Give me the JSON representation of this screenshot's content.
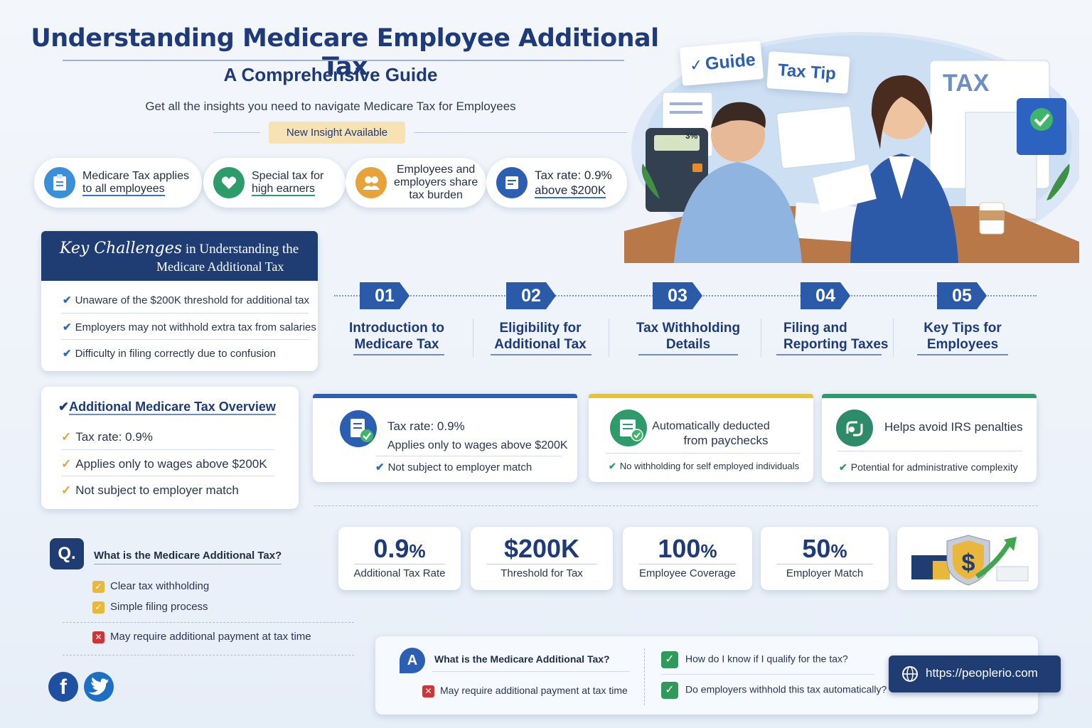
{
  "header": {
    "title": "Understanding Medicare Employee Additional Tax",
    "subtitle": "A Comprehensive Guide",
    "tagline": "Get all the insights you need to navigate Medicare Tax for Employees",
    "badge": "New Insight Available"
  },
  "illustration": {
    "guide_note": "Guide",
    "tip_note": "Tax Tip",
    "tax_doc": "TAX",
    "calculator_display": "3%"
  },
  "pills": [
    {
      "line1": "Medicare Tax applies",
      "line2": "to all employees",
      "icon": "clipboard-icon",
      "color": "#3a8fd9"
    },
    {
      "line1": "Special tax for",
      "line2": "high earners",
      "icon": "heart-hand-icon",
      "color": "#2e9b6a"
    },
    {
      "line1": "Employees and",
      "line2": "employers share",
      "line3": "tax burden",
      "icon": "people-icon",
      "color": "#e8a23a"
    },
    {
      "line1": "Tax rate: 0.9%",
      "line2": "above $200K",
      "icon": "document-icon",
      "color": "#2c5fb3"
    }
  ],
  "key_challenges": {
    "title_bold": "Key Challenges",
    "title_rest": " in Understanding the",
    "title_line2": "Medicare Additional Tax",
    "items": [
      "Unaware of the $200K threshold for additional tax",
      "Employers may not withhold extra tax from salaries",
      "Difficulty in filing correctly due to confusion"
    ]
  },
  "steps": [
    {
      "num": "01",
      "line1": "Introduction to",
      "line2": "Medicare Tax"
    },
    {
      "num": "02",
      "line1": "Eligibility for",
      "line2": "Additional Tax"
    },
    {
      "num": "03",
      "line1": "Tax Withholding",
      "line2": "Details"
    },
    {
      "num": "04",
      "line1": "Filing and",
      "line2": "Reporting Taxes"
    },
    {
      "num": "05",
      "line1": "Key Tips for",
      "line2": "Employees"
    }
  ],
  "overview": {
    "title": "Additional Medicare Tax Overview",
    "items": [
      "Tax rate:  0.9%",
      "Applies only to wages above $200K",
      "Not subject to employer match"
    ]
  },
  "features": [
    {
      "line1": "Tax rate: 0.9%",
      "line2": "Applies only to wages above $200K",
      "bottom": "Not subject to employer match",
      "color": "#2c5fb3"
    },
    {
      "line1": "Automatically deducted",
      "line2": "from paychecks",
      "bottom": "No withholding for self employed individuals",
      "color": "#e8c23a"
    },
    {
      "line1": "Helps avoid IRS penalties",
      "bottom": "Potential for administrative complexity",
      "color": "#2e9b6a"
    }
  ],
  "stats": [
    {
      "value": "0.9",
      "unit": "%",
      "label": "Additional Tax Rate"
    },
    {
      "value": "$200K",
      "unit": "",
      "label": "Threshold for Tax"
    },
    {
      "value": "100",
      "unit": "%",
      "label": "Employee Coverage"
    },
    {
      "value": "50",
      "unit": "%",
      "label": "Employer Match"
    }
  ],
  "question": {
    "badge": "Q.",
    "text": "What is the Medicare Additional Tax?",
    "pros": [
      "Clear tax withholding",
      "Simple filing process"
    ],
    "con": "May require additional payment at tax time"
  },
  "answer": {
    "badge": "A",
    "text": "What is the Medicare Additional Tax?",
    "con": "May require additional payment at tax time",
    "faqs": [
      "How do I know if I qualify for the tax?",
      "Do employers withhold this tax automatically?"
    ]
  },
  "website": "https://peoplerio.com",
  "social": {
    "facebook": "f",
    "twitter": "twitter-bird"
  }
}
